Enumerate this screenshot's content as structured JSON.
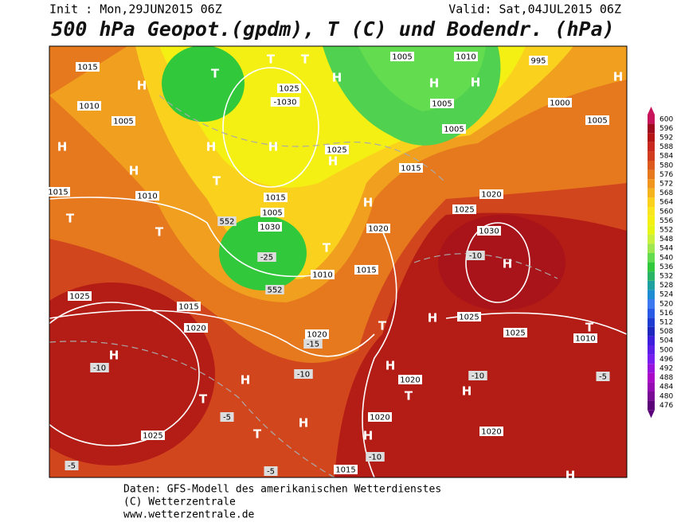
{
  "header": {
    "init": "Init : Mon,29JUN2015 06Z",
    "valid": "Valid: Sat,04JUL2015 06Z",
    "title": "500 hPa Geopot.(gpdm), T (C) und Bodendr. (hPa)"
  },
  "map": {
    "labels": [
      "1015",
      "1010",
      "1005",
      "H",
      "H",
      "H",
      "H",
      "H",
      "T",
      "T",
      "T",
      "H",
      "1025",
      "-1030",
      "1025",
      "H",
      "T",
      "1015",
      "1010",
      "T",
      "T",
      "1015",
      "1005",
      "1030",
      "-25",
      "552",
      "552",
      "T",
      "1010",
      "1015",
      "H",
      "1020",
      "1005",
      "1010",
      "995",
      "1000",
      "1005",
      "H",
      "H",
      "1005",
      "1005",
      "1015",
      "1020",
      "1025",
      "1030",
      "H",
      "-10",
      "H",
      "1025",
      "1025",
      "T",
      "1010",
      "H",
      "1025",
      "1015",
      "1020",
      "1020",
      "-15",
      "H",
      "-10",
      "T",
      "H",
      "-10",
      "H",
      "T",
      "1025",
      "-5",
      "T",
      "H",
      "1020",
      "T",
      "H",
      "1020",
      "H",
      "1015",
      "-10",
      "1020",
      "-10",
      "-5",
      "-5",
      "-5",
      "H"
    ]
  },
  "colorbar": {
    "values": [
      600,
      596,
      592,
      588,
      584,
      580,
      576,
      572,
      568,
      564,
      560,
      556,
      552,
      548,
      544,
      540,
      536,
      532,
      528,
      524,
      520,
      516,
      512,
      508,
      504,
      500,
      496,
      492,
      488,
      484,
      480,
      476
    ],
    "colors": [
      "#c8145a",
      "#a00a1e",
      "#b41414",
      "#c8281e",
      "#d23c1e",
      "#dc5a1e",
      "#e6781e",
      "#f0961e",
      "#f5b41e",
      "#fad21e",
      "#fae61e",
      "#f5f014",
      "#e6f514",
      "#c8f03c",
      "#a0e650",
      "#64dc50",
      "#32c83c",
      "#28b464",
      "#1ea0a0",
      "#1e8cd2",
      "#3c78f0",
      "#285ae6",
      "#1e3cd2",
      "#1e28be",
      "#3c1edc",
      "#5a1ee6",
      "#781ef0",
      "#9614dc",
      "#aa0ac8",
      "#960ab4",
      "#780a96",
      "#5a0078"
    ]
  },
  "footer": {
    "lines": [
      "Daten: GFS-Modell des amerikanischen Wetterdienstes",
      "(C) Wetterzentrale",
      "www.wetterzentrale.de"
    ]
  }
}
